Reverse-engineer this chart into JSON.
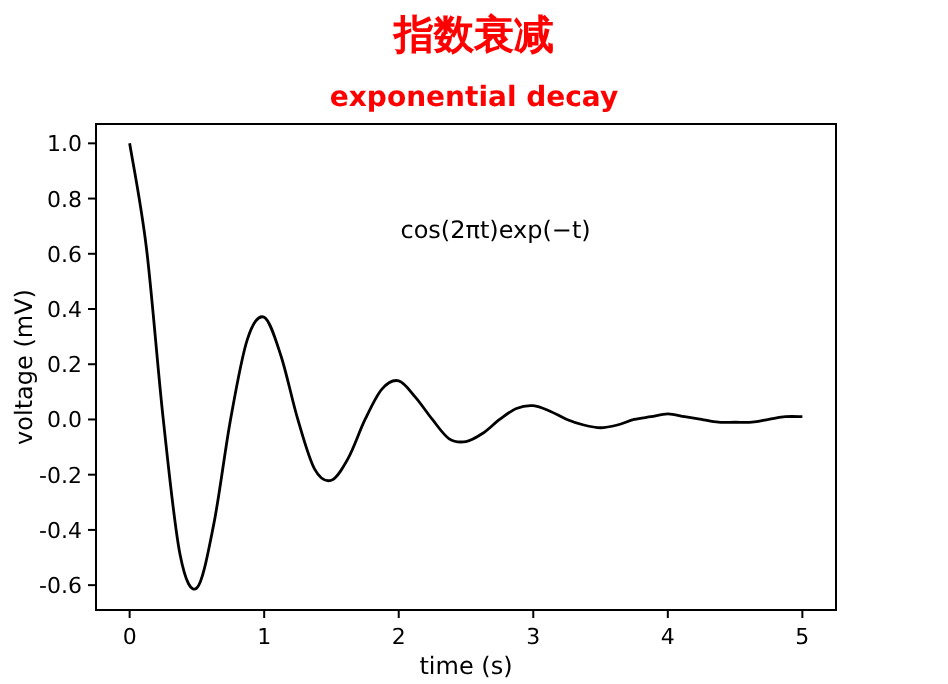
{
  "chart_data": {
    "type": "line",
    "title": "指数衰减",
    "subtitle": "exponential decay",
    "xlabel": "time (s)",
    "ylabel": "voltage (mV)",
    "annotations": [
      "cos(2πt)exp(−t)"
    ],
    "x": [
      0,
      0.125,
      0.25,
      0.375,
      0.5,
      0.625,
      0.75,
      0.875,
      1,
      1.125,
      1.25,
      1.375,
      1.5,
      1.625,
      1.75,
      1.875,
      2,
      2.125,
      2.25,
      2.375,
      2.5,
      2.625,
      2.75,
      2.875,
      3,
      3.125,
      3.25,
      3.375,
      3.5,
      3.625,
      3.75,
      3.875,
      4,
      4.125,
      4.25,
      4.375,
      4.5,
      4.625,
      4.75,
      4.875,
      5
    ],
    "series": [
      {
        "color": "#000000",
        "values": [
          1,
          0.62,
          0,
          -0.49,
          -0.61,
          -0.38,
          0,
          0.29,
          0.37,
          0.23,
          0,
          -0.18,
          -0.22,
          -0.14,
          0,
          0.11,
          0.14,
          0.08,
          0,
          -0.07,
          -0.08,
          -0.05,
          0,
          0.04,
          0.05,
          0.03,
          0,
          -0.02,
          -0.03,
          -0.02,
          0,
          0.01,
          0.02,
          0.01,
          0,
          -0.01,
          -0.01,
          -0.01,
          0,
          0.01,
          0.01
        ]
      }
    ],
    "xlim": [
      -0.25,
      5.25
    ],
    "ylim": [
      -0.69,
      1.07
    ],
    "xticks": [
      0,
      1,
      2,
      3,
      4,
      5
    ],
    "yticks": [
      -0.6,
      -0.4,
      -0.2,
      {
        "value": 0,
        "label": "0.0"
      },
      0.2,
      0.4,
      0.6,
      0.8,
      {
        "value": 1,
        "label": "1.0"
      }
    ],
    "grid": false,
    "marker": "none",
    "line_style": "solid"
  }
}
